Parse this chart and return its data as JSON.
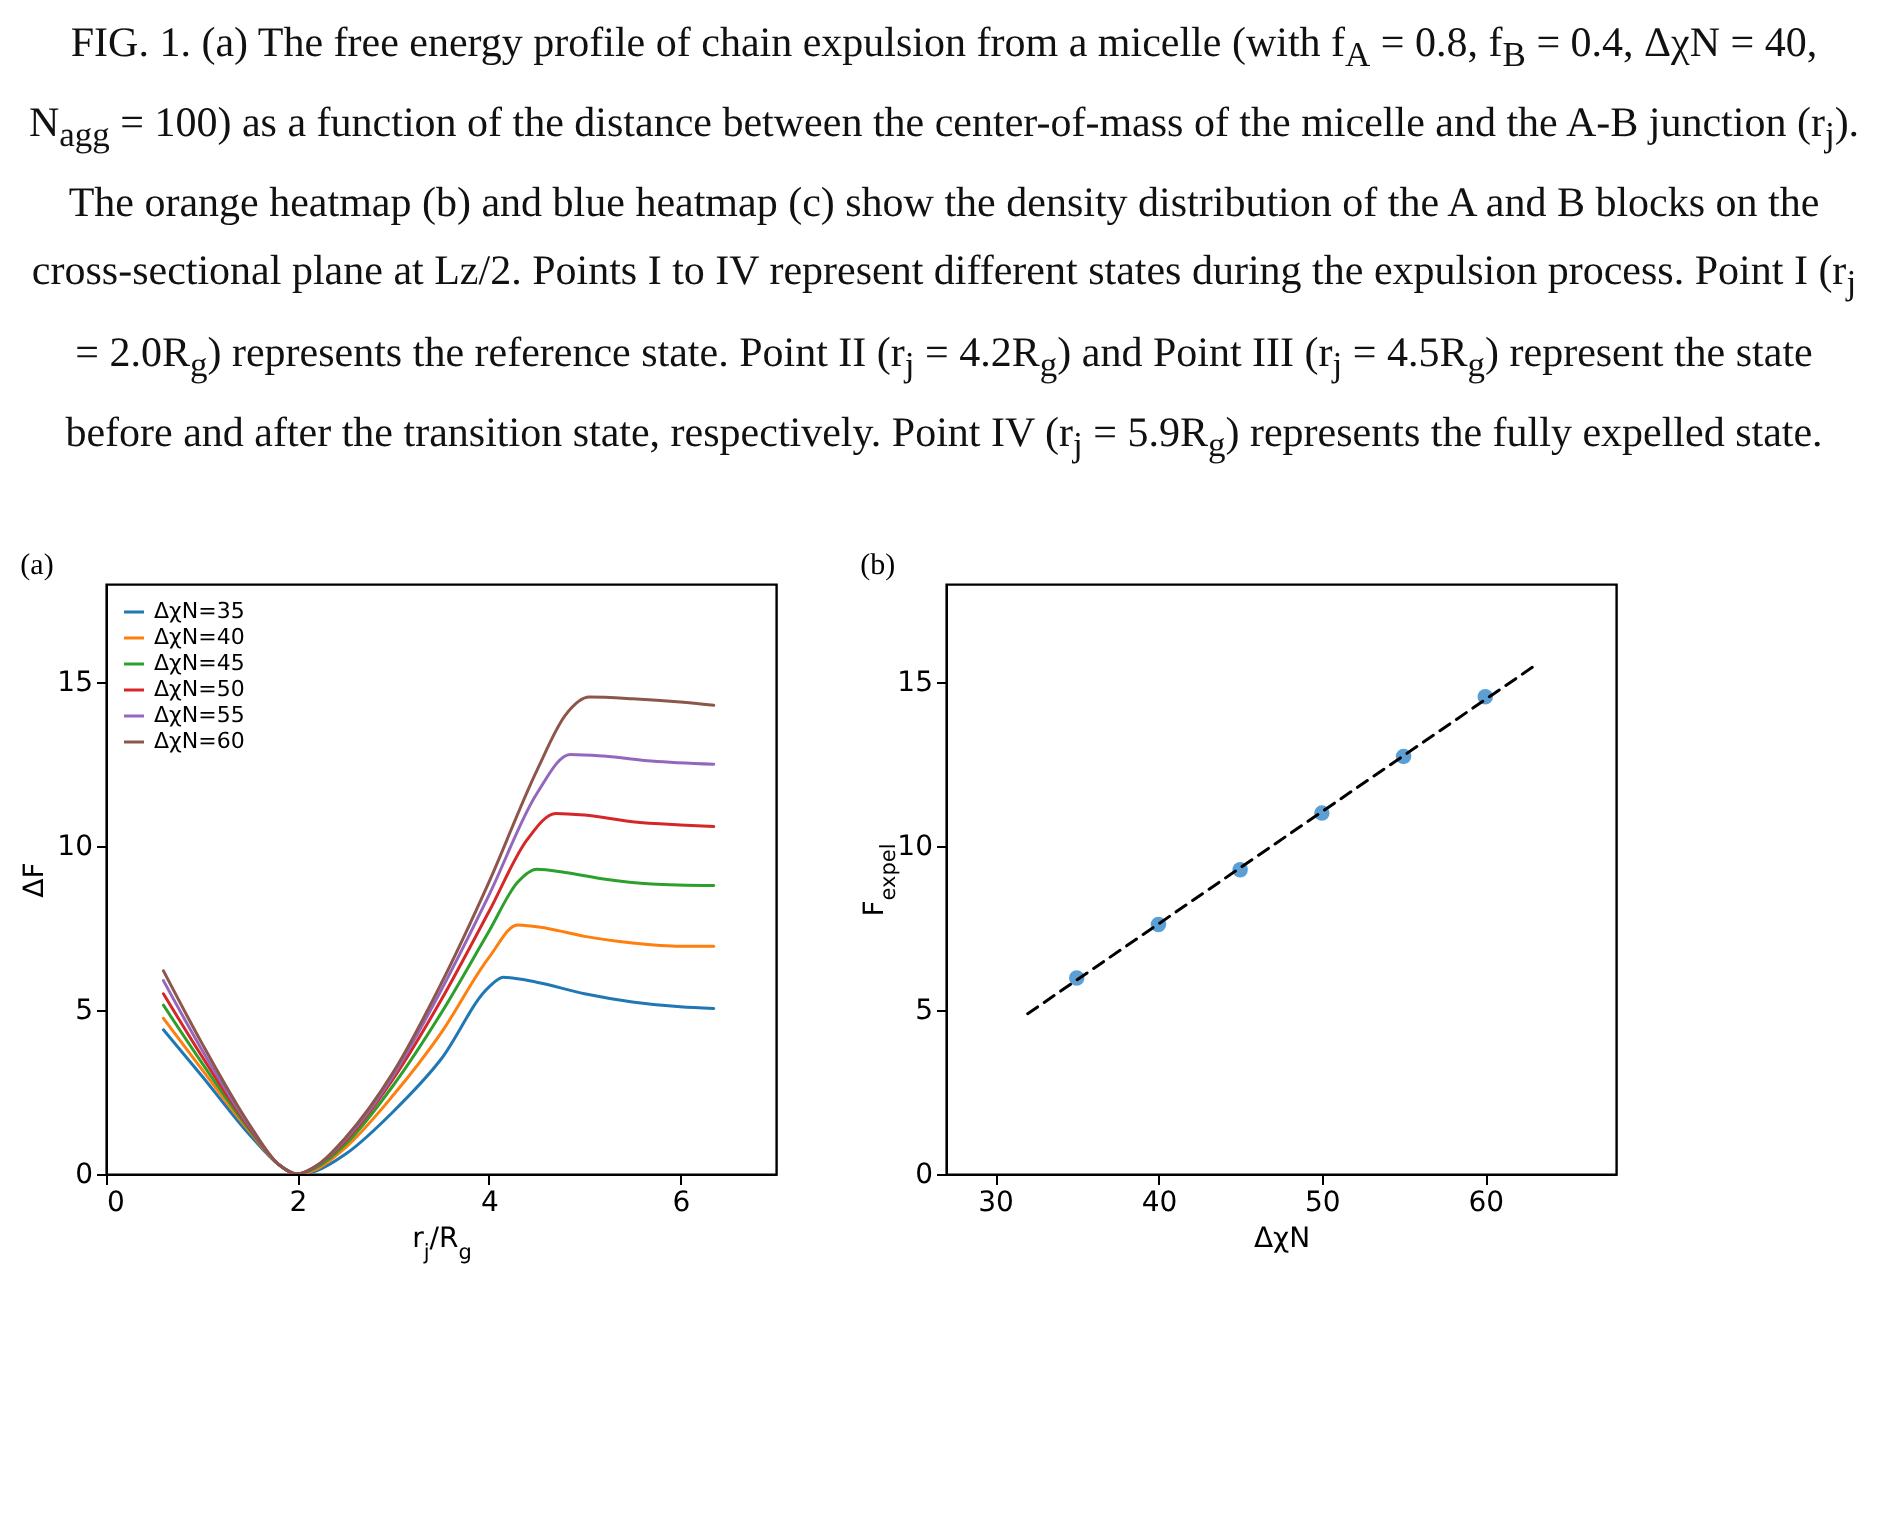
{
  "chart_data": [
    {
      "type": "line",
      "title": "(a)",
      "xlabel": "r$_{j}$/R$_{g}$",
      "ylabel": "ΔF",
      "xlim": [
        0,
        7
      ],
      "ylim": [
        0,
        18
      ],
      "xticks": [
        0,
        2,
        4,
        6
      ],
      "yticks": [
        0,
        5,
        10,
        15
      ],
      "legend": "top left",
      "annotations": [
        "FIG. 1. (a) The free energy profile of chain expulsion from a micelle (with f$_{A}$ = 0.8, f$_{B}$ = 0.4, ΔχN = 40, N$_{agg}$ = 100) as a function of the distance between the center-of-mass of the micelle and the A-B junction (r$_{j}$). The orange heatmap (b) and blue heatmap (c) show the density distribution of the A and B blocks on the cross-sectional plane at Lz/2. Points I to IV represent different states during the expulsion process. Point I (r$_{j}$ = 2.0R$_{g}$) represents the reference state. Point II (r$_{j}$ = 4.2R$_{g}$) and Point III (r$_{j}$ = 4.5R$_{g}$) represent the state before and after the transition state, respectively. Point IV (r$_{j}$ = 5.9R$_{g}$) represents the fully expelled state."
      ],
      "series": [
        {
          "name": "ΔχN=35",
          "color": "#1f77b4",
          "x": [
            0.6,
            1.0,
            1.5,
            1.8,
            2.0,
            2.2,
            2.5,
            3.0,
            3.5,
            4.0,
            4.15,
            4.5,
            5.0,
            5.5,
            6.0,
            6.35
          ],
          "values": [
            4.4,
            3.0,
            1.2,
            0.3,
            0.0,
            0.1,
            0.6,
            1.9,
            3.5,
            5.7,
            6.0,
            5.85,
            5.5,
            5.25,
            5.1,
            5.05
          ]
        },
        {
          "name": "ΔχN=40",
          "color": "#ff7f0e",
          "x": [
            0.6,
            1.0,
            1.5,
            1.8,
            2.0,
            2.2,
            2.5,
            3.0,
            3.5,
            4.0,
            4.3,
            4.6,
            5.0,
            5.5,
            6.0,
            6.35
          ],
          "values": [
            4.75,
            3.2,
            1.3,
            0.3,
            0.0,
            0.15,
            0.8,
            2.4,
            4.3,
            6.6,
            7.6,
            7.5,
            7.25,
            7.05,
            6.95,
            6.95
          ]
        },
        {
          "name": "ΔχN=45",
          "color": "#2ca02c",
          "x": [
            0.6,
            1.0,
            1.5,
            1.8,
            2.0,
            2.2,
            2.5,
            3.0,
            3.5,
            4.0,
            4.3,
            4.5,
            4.8,
            5.2,
            5.7,
            6.35
          ],
          "values": [
            5.15,
            3.4,
            1.35,
            0.3,
            0.0,
            0.2,
            0.9,
            2.7,
            4.9,
            7.4,
            8.9,
            9.3,
            9.2,
            9.0,
            8.85,
            8.8
          ]
        },
        {
          "name": "ΔχN=50",
          "color": "#d62728",
          "x": [
            0.6,
            1.0,
            1.5,
            1.8,
            2.0,
            2.2,
            2.5,
            3.0,
            3.5,
            4.0,
            4.4,
            4.7,
            5.0,
            5.5,
            6.0,
            6.35
          ],
          "values": [
            5.5,
            3.6,
            1.4,
            0.3,
            0.0,
            0.25,
            1.0,
            2.9,
            5.3,
            8.0,
            10.2,
            11.0,
            10.95,
            10.75,
            10.65,
            10.6
          ]
        },
        {
          "name": "ΔχN=55",
          "color": "#9467bd",
          "x": [
            0.6,
            1.0,
            1.5,
            1.8,
            2.0,
            2.2,
            2.5,
            3.0,
            3.5,
            4.0,
            4.5,
            4.85,
            5.2,
            5.7,
            6.35
          ],
          "values": [
            5.9,
            3.8,
            1.45,
            0.3,
            0.0,
            0.25,
            1.05,
            3.0,
            5.6,
            8.5,
            11.6,
            12.8,
            12.75,
            12.6,
            12.5
          ]
        },
        {
          "name": "ΔχN=60",
          "color": "#8c564b",
          "x": [
            0.6,
            1.0,
            1.5,
            1.8,
            2.0,
            2.2,
            2.5,
            3.0,
            3.5,
            4.0,
            4.5,
            4.8,
            5.05,
            5.5,
            6.0,
            6.35
          ],
          "values": [
            6.2,
            4.0,
            1.5,
            0.3,
            0.0,
            0.25,
            1.1,
            3.1,
            5.8,
            8.9,
            12.3,
            14.0,
            14.55,
            14.5,
            14.4,
            14.3
          ]
        }
      ]
    },
    {
      "type": "scatter",
      "title": "(b)",
      "xlabel": "ΔχN",
      "ylabel": "F$_{expel}$",
      "xlim": [
        27,
        68
      ],
      "ylim": [
        0,
        18
      ],
      "xticks": [
        30,
        40,
        50,
        60
      ],
      "yticks": [
        0,
        5,
        10,
        15
      ],
      "series": [
        {
          "marker": "circle",
          "color": "#5b9fd4",
          "x": [
            35,
            40,
            45,
            50,
            55,
            60
          ],
          "values": [
            5.98,
            7.61,
            9.28,
            11.01,
            12.74,
            14.56
          ]
        },
        {
          "type": "line",
          "color": "#000000",
          "line_style": "dashed",
          "x": [
            32,
            63
          ],
          "values": [
            4.89,
            15.5
          ]
        }
      ]
    }
  ]
}
